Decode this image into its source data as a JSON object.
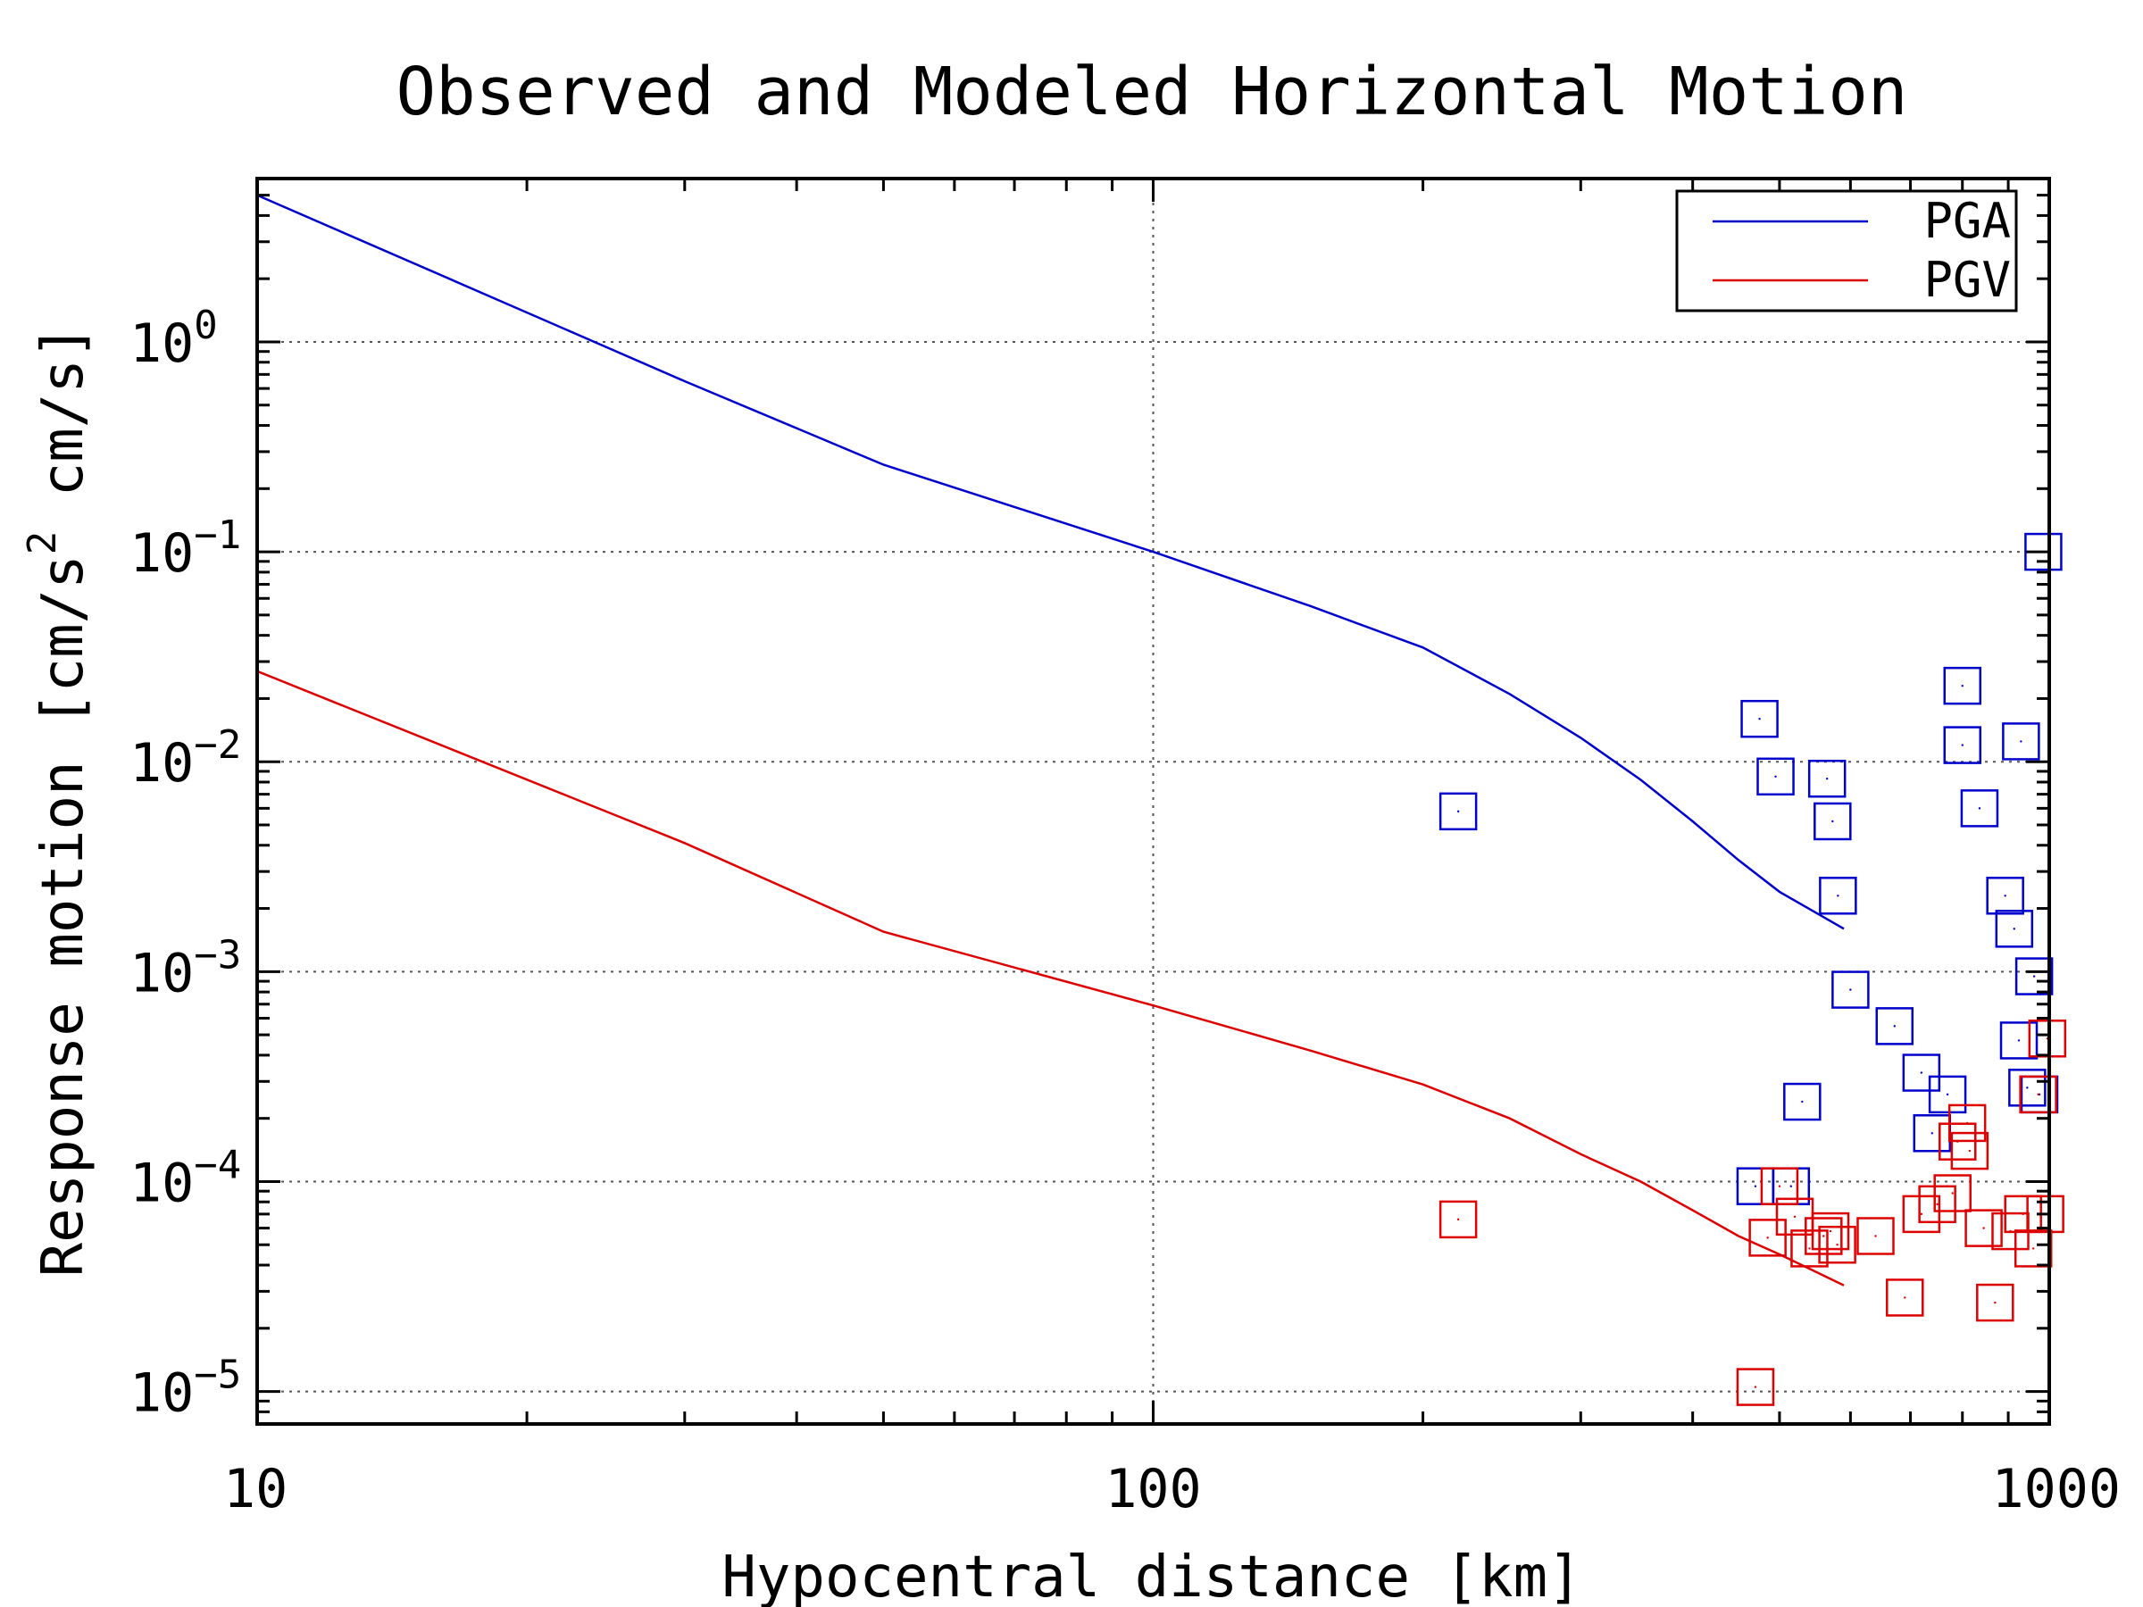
{
  "chart_data": {
    "type": "line",
    "title": "Observed and Modeled Horizontal Motion",
    "xlabel": "Hypocentral distance [km]",
    "ylabel_parts": [
      "Response motion  [cm/s",
      "2",
      "  cm/s]"
    ],
    "x_scale": "log",
    "y_scale": "log",
    "xlim": [
      10,
      1000
    ],
    "ylim": [
      7e-06,
      6
    ],
    "x_ticks": [
      {
        "value": 10,
        "label": "10"
      },
      {
        "value": 100,
        "label": "100"
      },
      {
        "value": 1000,
        "label": "1000"
      }
    ],
    "y_ticks": [
      {
        "value": 1,
        "base": "10",
        "exp": "0"
      },
      {
        "value": 0.1,
        "base": "10",
        "exp": "−1"
      },
      {
        "value": 0.01,
        "base": "10",
        "exp": "−2"
      },
      {
        "value": 0.001,
        "base": "10",
        "exp": "−3"
      },
      {
        "value": 0.0001,
        "base": "10",
        "exp": "−4"
      },
      {
        "value": 1e-05,
        "base": "10",
        "exp": "−5"
      }
    ],
    "grid": true,
    "legend_position": "top-right",
    "series": [
      {
        "name": "PGA",
        "color": "#0000cc",
        "line": {
          "x": [
            10,
            30,
            50,
            100,
            150,
            200,
            250,
            300,
            350,
            400,
            450,
            500,
            550,
            590
          ],
          "y": [
            5.0,
            0.65,
            0.26,
            0.1,
            0.055,
            0.035,
            0.021,
            0.013,
            0.0082,
            0.0052,
            0.0034,
            0.0024,
            0.0019,
            0.0016
          ]
        },
        "points": {
          "x": [
            219,
            475,
            495,
            565,
            573,
            581,
            600,
            530,
            515,
            470,
            672,
            770,
            740,
            720,
            800,
            800,
            836,
            893,
            914,
            925,
            930,
            945,
            962,
            985,
            975
          ],
          "y": [
            0.0058,
            0.016,
            0.0085,
            0.0083,
            0.0052,
            0.0023,
            0.00082,
            0.00024,
            9.5e-05,
            9.5e-05,
            0.00055,
            0.00026,
            0.00017,
            0.00033,
            0.023,
            0.012,
            0.006,
            0.0023,
            0.0016,
            0.00047,
            0.0125,
            0.00028,
            0.00095,
            0.1,
            0.00026
          ]
        }
      },
      {
        "name": "PGV",
        "color": "#dd0000",
        "line": {
          "x": [
            10,
            30,
            50,
            100,
            150,
            200,
            250,
            300,
            350,
            400,
            450,
            500,
            550,
            590
          ],
          "y": [
            0.027,
            0.0041,
            0.00155,
            0.00069,
            0.00042,
            0.00029,
            0.0002,
            0.000135,
            0.0001,
            7.3e-05,
            5.5e-05,
            4.5e-05,
            3.7e-05,
            3.2e-05
          ]
        },
        "points": {
          "x": [
            219,
            470,
            485,
            500,
            520,
            540,
            560,
            570,
            580,
            640,
            690,
            720,
            750,
            780,
            790,
            810,
            815,
            845,
            870,
            905,
            935,
            960,
            972,
            990,
            995
          ],
          "y": [
            6.6e-05,
            1.05e-05,
            5.4e-05,
            9.5e-05,
            6.8e-05,
            4.8e-05,
            5.5e-05,
            5.8e-05,
            5e-05,
            5.5e-05,
            2.8e-05,
            7e-05,
            7.8e-05,
            8.8e-05,
            0.000155,
            0.00019,
            0.00014,
            6e-05,
            2.65e-05,
            5.8e-05,
            7e-05,
            4.8e-05,
            0.00026,
            7e-05,
            0.00048
          ]
        }
      }
    ]
  }
}
